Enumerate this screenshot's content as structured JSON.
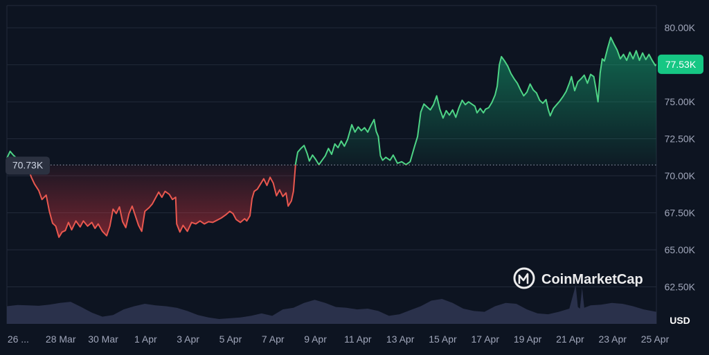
{
  "chart_data": {
    "type": "area",
    "currency_label": "USD",
    "watermark": "CoinMarketCap",
    "baseline_value": 70730,
    "baseline_label": "70.73K",
    "last_value": 77530,
    "last_label": "77.53K",
    "ylim": [
      60000,
      81500
    ],
    "yticks": [
      {
        "value": 80000,
        "label": "80.00K"
      },
      {
        "value": 77500,
        "label": "77.50K"
      },
      {
        "value": 75000,
        "label": "75.00K"
      },
      {
        "value": 72500,
        "label": "72.50K"
      },
      {
        "value": 70000,
        "label": "70.00K"
      },
      {
        "value": 67500,
        "label": "67.50K"
      },
      {
        "value": 65000,
        "label": "65.00K"
      },
      {
        "value": 62500,
        "label": "62.50K"
      }
    ],
    "xlim": [
      0,
      30.6
    ],
    "xticks": [
      {
        "day": 0.6,
        "label": "26 ..."
      },
      {
        "day": 2.6,
        "label": "28 Mar"
      },
      {
        "day": 4.6,
        "label": "30 Mar"
      },
      {
        "day": 6.6,
        "label": "1 Apr"
      },
      {
        "day": 8.6,
        "label": "3 Apr"
      },
      {
        "day": 10.6,
        "label": "5 Apr"
      },
      {
        "day": 12.6,
        "label": "7 Apr"
      },
      {
        "day": 14.6,
        "label": "9 Apr"
      },
      {
        "day": 16.6,
        "label": "11 Apr"
      },
      {
        "day": 18.6,
        "label": "13 Apr"
      },
      {
        "day": 20.6,
        "label": "15 Apr"
      },
      {
        "day": 22.6,
        "label": "17 Apr"
      },
      {
        "day": 24.6,
        "label": "19 Apr"
      },
      {
        "day": 26.6,
        "label": "21 Apr"
      },
      {
        "day": 28.6,
        "label": "23 Apr"
      },
      {
        "day": 30.6,
        "label": "25 Apr"
      }
    ],
    "price_series": {
      "name": "",
      "points": [
        [
          0.0,
          71200
        ],
        [
          0.15,
          71650
        ],
        [
          0.3,
          71400
        ],
        [
          0.45,
          71200
        ],
        [
          0.6,
          70850
        ],
        [
          0.8,
          70700
        ],
        [
          1.0,
          70500
        ],
        [
          1.15,
          69900
        ],
        [
          1.3,
          69450
        ],
        [
          1.5,
          69000
        ],
        [
          1.65,
          68400
        ],
        [
          1.85,
          68700
        ],
        [
          2.0,
          67600
        ],
        [
          2.15,
          66800
        ],
        [
          2.3,
          66600
        ],
        [
          2.45,
          65850
        ],
        [
          2.6,
          66200
        ],
        [
          2.75,
          66300
        ],
        [
          2.9,
          66850
        ],
        [
          3.05,
          66350
        ],
        [
          3.25,
          66950
        ],
        [
          3.45,
          66550
        ],
        [
          3.6,
          66950
        ],
        [
          3.8,
          66600
        ],
        [
          4.0,
          66850
        ],
        [
          4.15,
          66450
        ],
        [
          4.3,
          66750
        ],
        [
          4.5,
          66250
        ],
        [
          4.7,
          65950
        ],
        [
          4.85,
          66600
        ],
        [
          5.0,
          67750
        ],
        [
          5.15,
          67450
        ],
        [
          5.3,
          67900
        ],
        [
          5.45,
          66900
        ],
        [
          5.6,
          66500
        ],
        [
          5.75,
          67450
        ],
        [
          5.9,
          67950
        ],
        [
          6.05,
          67300
        ],
        [
          6.2,
          66650
        ],
        [
          6.35,
          66250
        ],
        [
          6.5,
          67600
        ],
        [
          6.7,
          67850
        ],
        [
          6.85,
          68100
        ],
        [
          7.0,
          68500
        ],
        [
          7.15,
          68900
        ],
        [
          7.3,
          68550
        ],
        [
          7.45,
          68950
        ],
        [
          7.65,
          68750
        ],
        [
          7.8,
          68400
        ],
        [
          7.95,
          68550
        ],
        [
          8.0,
          66750
        ],
        [
          8.15,
          66200
        ],
        [
          8.3,
          66650
        ],
        [
          8.5,
          66250
        ],
        [
          8.7,
          66850
        ],
        [
          8.9,
          66750
        ],
        [
          9.1,
          66950
        ],
        [
          9.3,
          66750
        ],
        [
          9.5,
          66900
        ],
        [
          9.7,
          66850
        ],
        [
          9.9,
          67000
        ],
        [
          10.1,
          67150
        ],
        [
          10.3,
          67350
        ],
        [
          10.5,
          67600
        ],
        [
          10.65,
          67450
        ],
        [
          10.8,
          67050
        ],
        [
          11.0,
          66850
        ],
        [
          11.2,
          67100
        ],
        [
          11.3,
          66950
        ],
        [
          11.45,
          67300
        ],
        [
          11.55,
          68450
        ],
        [
          11.65,
          68950
        ],
        [
          11.8,
          69100
        ],
        [
          11.95,
          69450
        ],
        [
          12.1,
          69800
        ],
        [
          12.25,
          69350
        ],
        [
          12.4,
          69900
        ],
        [
          12.55,
          69500
        ],
        [
          12.7,
          68650
        ],
        [
          12.85,
          69050
        ],
        [
          13.0,
          68600
        ],
        [
          13.15,
          68850
        ],
        [
          13.25,
          67950
        ],
        [
          13.4,
          68300
        ],
        [
          13.5,
          68950
        ],
        [
          13.6,
          70800
        ],
        [
          13.7,
          71600
        ],
        [
          13.85,
          71850
        ],
        [
          14.0,
          72050
        ],
        [
          14.15,
          71500
        ],
        [
          14.25,
          71000
        ],
        [
          14.4,
          71400
        ],
        [
          14.55,
          71100
        ],
        [
          14.7,
          70750
        ],
        [
          14.85,
          71050
        ],
        [
          15.0,
          71350
        ],
        [
          15.15,
          71850
        ],
        [
          15.3,
          71450
        ],
        [
          15.45,
          72150
        ],
        [
          15.6,
          71900
        ],
        [
          15.75,
          72350
        ],
        [
          15.9,
          72000
        ],
        [
          16.05,
          72450
        ],
        [
          16.25,
          73450
        ],
        [
          16.4,
          72950
        ],
        [
          16.55,
          73300
        ],
        [
          16.7,
          73050
        ],
        [
          16.85,
          73250
        ],
        [
          17.0,
          72950
        ],
        [
          17.15,
          73400
        ],
        [
          17.3,
          73800
        ],
        [
          17.4,
          73000
        ],
        [
          17.5,
          72650
        ],
        [
          17.6,
          71350
        ],
        [
          17.7,
          71050
        ],
        [
          17.85,
          71250
        ],
        [
          18.05,
          71050
        ],
        [
          18.2,
          71400
        ],
        [
          18.4,
          70850
        ],
        [
          18.6,
          70950
        ],
        [
          18.8,
          70750
        ],
        [
          19.0,
          70950
        ],
        [
          19.2,
          71950
        ],
        [
          19.35,
          72650
        ],
        [
          19.5,
          74300
        ],
        [
          19.65,
          74850
        ],
        [
          19.8,
          74650
        ],
        [
          19.95,
          74450
        ],
        [
          20.1,
          74800
        ],
        [
          20.25,
          75400
        ],
        [
          20.4,
          74500
        ],
        [
          20.55,
          73900
        ],
        [
          20.7,
          74400
        ],
        [
          20.85,
          74100
        ],
        [
          21.0,
          74450
        ],
        [
          21.15,
          73950
        ],
        [
          21.3,
          74600
        ],
        [
          21.45,
          75100
        ],
        [
          21.6,
          74800
        ],
        [
          21.75,
          75000
        ],
        [
          21.9,
          74850
        ],
        [
          22.05,
          74700
        ],
        [
          22.15,
          74250
        ],
        [
          22.3,
          74550
        ],
        [
          22.45,
          74250
        ],
        [
          22.55,
          74500
        ],
        [
          22.7,
          74600
        ],
        [
          22.85,
          74950
        ],
        [
          23.0,
          75450
        ],
        [
          23.1,
          76050
        ],
        [
          23.2,
          77500
        ],
        [
          23.3,
          78050
        ],
        [
          23.45,
          77750
        ],
        [
          23.6,
          77400
        ],
        [
          23.75,
          76900
        ],
        [
          23.9,
          76550
        ],
        [
          24.05,
          76250
        ],
        [
          24.2,
          75800
        ],
        [
          24.35,
          75400
        ],
        [
          24.5,
          75650
        ],
        [
          24.65,
          76200
        ],
        [
          24.8,
          75800
        ],
        [
          24.95,
          75600
        ],
        [
          25.1,
          75100
        ],
        [
          25.25,
          74900
        ],
        [
          25.4,
          75150
        ],
        [
          25.5,
          74500
        ],
        [
          25.6,
          74050
        ],
        [
          25.75,
          74550
        ],
        [
          25.9,
          74800
        ],
        [
          26.05,
          75050
        ],
        [
          26.2,
          75350
        ],
        [
          26.35,
          75700
        ],
        [
          26.5,
          76250
        ],
        [
          26.6,
          76700
        ],
        [
          26.75,
          75750
        ],
        [
          26.9,
          76350
        ],
        [
          27.05,
          76550
        ],
        [
          27.2,
          76800
        ],
        [
          27.35,
          76250
        ],
        [
          27.5,
          76850
        ],
        [
          27.65,
          76700
        ],
        [
          27.75,
          75900
        ],
        [
          27.85,
          75000
        ],
        [
          27.95,
          76950
        ],
        [
          28.05,
          77900
        ],
        [
          28.15,
          77750
        ],
        [
          28.3,
          78600
        ],
        [
          28.45,
          79350
        ],
        [
          28.6,
          78900
        ],
        [
          28.75,
          78500
        ],
        [
          28.9,
          77900
        ],
        [
          29.05,
          78200
        ],
        [
          29.2,
          77800
        ],
        [
          29.35,
          78350
        ],
        [
          29.5,
          77900
        ],
        [
          29.65,
          78450
        ],
        [
          29.8,
          77800
        ],
        [
          29.95,
          78300
        ],
        [
          30.1,
          77850
        ],
        [
          30.25,
          78200
        ],
        [
          30.4,
          77800
        ],
        [
          30.55,
          77450
        ],
        [
          30.6,
          77530
        ]
      ]
    },
    "volume_series": {
      "name": "",
      "relative_values": [
        [
          0.0,
          0.44
        ],
        [
          0.5,
          0.47
        ],
        [
          1.0,
          0.46
        ],
        [
          1.5,
          0.45
        ],
        [
          2.0,
          0.48
        ],
        [
          2.5,
          0.52
        ],
        [
          3.0,
          0.55
        ],
        [
          3.5,
          0.42
        ],
        [
          4.0,
          0.28
        ],
        [
          4.5,
          0.18
        ],
        [
          5.0,
          0.22
        ],
        [
          5.5,
          0.36
        ],
        [
          6.0,
          0.44
        ],
        [
          6.5,
          0.5
        ],
        [
          7.0,
          0.46
        ],
        [
          7.5,
          0.44
        ],
        [
          8.0,
          0.4
        ],
        [
          8.5,
          0.32
        ],
        [
          9.0,
          0.22
        ],
        [
          9.5,
          0.16
        ],
        [
          10.0,
          0.12
        ],
        [
          10.5,
          0.14
        ],
        [
          11.0,
          0.16
        ],
        [
          11.5,
          0.2
        ],
        [
          12.0,
          0.26
        ],
        [
          12.5,
          0.2
        ],
        [
          13.0,
          0.36
        ],
        [
          13.5,
          0.4
        ],
        [
          14.0,
          0.52
        ],
        [
          14.5,
          0.6
        ],
        [
          15.0,
          0.52
        ],
        [
          15.5,
          0.42
        ],
        [
          16.0,
          0.4
        ],
        [
          16.5,
          0.36
        ],
        [
          17.0,
          0.38
        ],
        [
          17.5,
          0.32
        ],
        [
          18.0,
          0.2
        ],
        [
          18.5,
          0.24
        ],
        [
          19.0,
          0.34
        ],
        [
          19.5,
          0.44
        ],
        [
          20.0,
          0.58
        ],
        [
          20.5,
          0.62
        ],
        [
          21.0,
          0.52
        ],
        [
          21.5,
          0.38
        ],
        [
          22.0,
          0.32
        ],
        [
          22.5,
          0.3
        ],
        [
          23.0,
          0.44
        ],
        [
          23.5,
          0.52
        ],
        [
          24.0,
          0.5
        ],
        [
          24.5,
          0.36
        ],
        [
          25.0,
          0.26
        ],
        [
          25.5,
          0.24
        ],
        [
          26.0,
          0.3
        ],
        [
          26.5,
          0.38
        ],
        [
          26.8,
          0.96
        ],
        [
          26.9,
          0.42
        ],
        [
          27.0,
          0.38
        ],
        [
          27.1,
          0.9
        ],
        [
          27.2,
          0.4
        ],
        [
          27.5,
          0.46
        ],
        [
          28.0,
          0.48
        ],
        [
          28.5,
          0.52
        ],
        [
          29.0,
          0.5
        ],
        [
          29.5,
          0.44
        ],
        [
          30.0,
          0.36
        ],
        [
          30.6,
          0.3
        ]
      ]
    },
    "colors": {
      "background": "#0d1421",
      "grid": "#222a3a",
      "up": "#16c784",
      "down": "#ea3943",
      "volume": "#2c334e",
      "tick_text": "#a1a7bb"
    }
  }
}
